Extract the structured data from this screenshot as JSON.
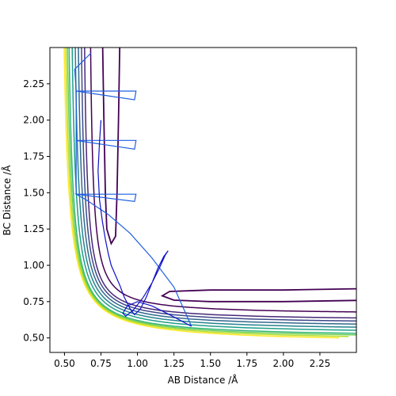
{
  "chart_data": {
    "type": "line",
    "title": "",
    "xlabel": "AB Distance /Å",
    "ylabel": "BC Distance /Å",
    "xlim": [
      0.4,
      2.5
    ],
    "ylim": [
      0.4,
      2.5
    ],
    "xticks": [
      "0.50",
      "0.75",
      "1.00",
      "1.25",
      "1.50",
      "1.75",
      "2.00",
      "2.25"
    ],
    "yticks": [
      "0.50",
      "0.75",
      "1.00",
      "1.25",
      "1.50",
      "1.75",
      "2.00",
      "2.25"
    ],
    "grid": false,
    "legend": "none",
    "contours": {
      "description": "potential energy surface isolines, purple (low) to yellow (high)",
      "levels": [
        {
          "color": "#440154",
          "x_asym": 0.74,
          "y_asym": 0.74,
          "x_well": 0.8,
          "y_well": 0.78,
          "x_wall": 0.78,
          "y_wall": 0.54
        },
        {
          "color": "#482878",
          "x_asym": 0.7,
          "y_asym": 0.7,
          "x_wall": 0.7,
          "y_wall": 0.53
        },
        {
          "color": "#3e4989",
          "x_asym": 0.68,
          "y_asym": 0.68,
          "x_wall": 0.65,
          "y_wall": 0.53
        },
        {
          "color": "#31688e",
          "x_asym": 0.66,
          "y_asym": 0.66,
          "x_wall": 0.62,
          "y_wall": 0.53
        },
        {
          "color": "#26828e",
          "x_asym": 0.64,
          "y_asym": 0.64,
          "x_wall": 0.6,
          "y_wall": 0.52
        },
        {
          "color": "#1f9e89",
          "x_asym": 0.62,
          "y_asym": 0.62,
          "x_wall": 0.58,
          "y_wall": 0.52
        },
        {
          "color": "#35b779",
          "x_asym": 0.6,
          "y_asym": 0.6,
          "x_wall": 0.57,
          "y_wall": 0.52
        },
        {
          "color": "#6ece58",
          "x_asym": 0.59,
          "y_asym": 0.59,
          "x_wall": 0.56,
          "y_wall": 0.51
        },
        {
          "color": "#b5de2b",
          "x_asym": 0.58,
          "y_asym": 0.58,
          "x_wall": 0.55,
          "y_wall": 0.51
        },
        {
          "color": "#fde725",
          "x_asym": 0.57,
          "y_asym": 0.57,
          "x_wall": 0.54,
          "y_wall": 0.51
        }
      ],
      "outer_x": [
        0.94,
        1.0,
        1.05,
        1.1,
        1.15,
        1.19,
        1.25
      ],
      "outer_y": [
        0.93,
        1.0,
        1.05,
        1.1,
        1.13,
        1.17,
        1.2
      ]
    },
    "series": [
      {
        "color": "#1f5fe0",
        "x": [
          0.68,
          0.57,
          0.58,
          0.98,
          0.99,
          0.58,
          0.58,
          0.98,
          0.99,
          0.58,
          0.58,
          0.98,
          0.99,
          0.58,
          0.58,
          0.65,
          0.8,
          0.95,
          1.1,
          1.25,
          1.37
        ],
        "y": [
          2.46,
          2.35,
          2.2,
          2.14,
          2.2,
          2.2,
          1.86,
          1.8,
          1.86,
          1.86,
          1.49,
          1.44,
          1.49,
          1.49,
          1.49,
          1.45,
          1.35,
          1.22,
          1.05,
          0.85,
          0.58
        ]
      },
      {
        "color": "#1010c8",
        "x": [
          0.75,
          0.74,
          0.73,
          0.74,
          0.76,
          0.78,
          0.8,
          0.82,
          0.85,
          0.88,
          0.91,
          0.95,
          0.98,
          1.02,
          1.06,
          1.1,
          1.14,
          1.18,
          1.21,
          1.19,
          1.15,
          1.1,
          1.04,
          0.97,
          0.92,
          0.9,
          0.93,
          1.0,
          1.1,
          1.22,
          1.37
        ],
        "y": [
          2.0,
          1.85,
          1.65,
          1.45,
          1.3,
          1.18,
          1.08,
          1.0,
          0.93,
          0.86,
          0.78,
          0.7,
          0.66,
          0.7,
          0.78,
          0.88,
          0.98,
          1.06,
          1.1,
          1.07,
          0.98,
          0.88,
          0.78,
          0.69,
          0.65,
          0.67,
          0.72,
          0.75,
          0.72,
          0.66,
          0.58
        ]
      }
    ]
  }
}
